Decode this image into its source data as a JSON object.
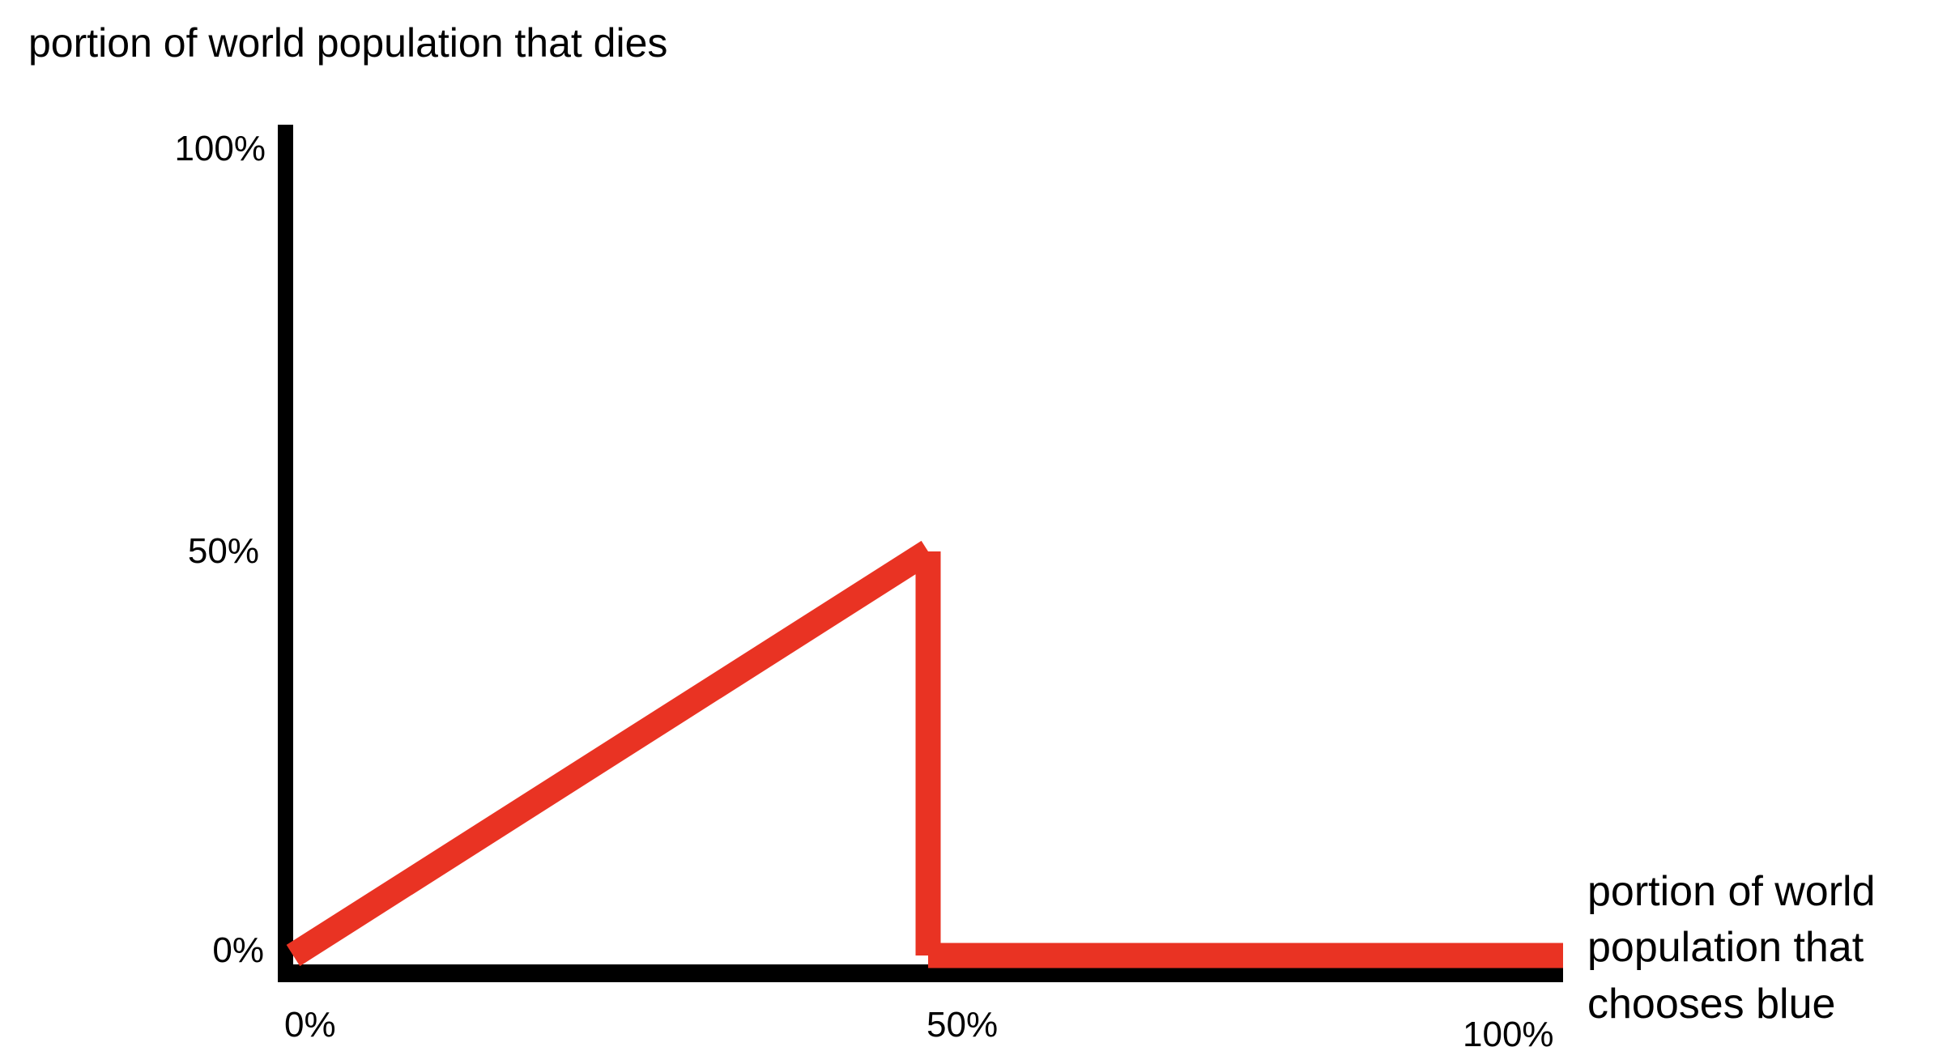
{
  "chart_data": {
    "type": "line",
    "title": "",
    "ylabel": "portion of world population that dies",
    "xlabel_lines": [
      "portion of world",
      "population that",
      "chooses blue"
    ],
    "x_ticks": [
      "0%",
      "50%",
      "100%"
    ],
    "y_ticks": [
      "100%",
      "50%",
      "0%"
    ],
    "xlim": [
      0,
      100
    ],
    "ylim": [
      0,
      100
    ],
    "grid": false,
    "series": [
      {
        "x": [
          0,
          50,
          50,
          100
        ],
        "y": [
          0,
          50,
          0,
          0
        ],
        "color": "#e93323"
      }
    ],
    "axis_color": "#000000"
  }
}
